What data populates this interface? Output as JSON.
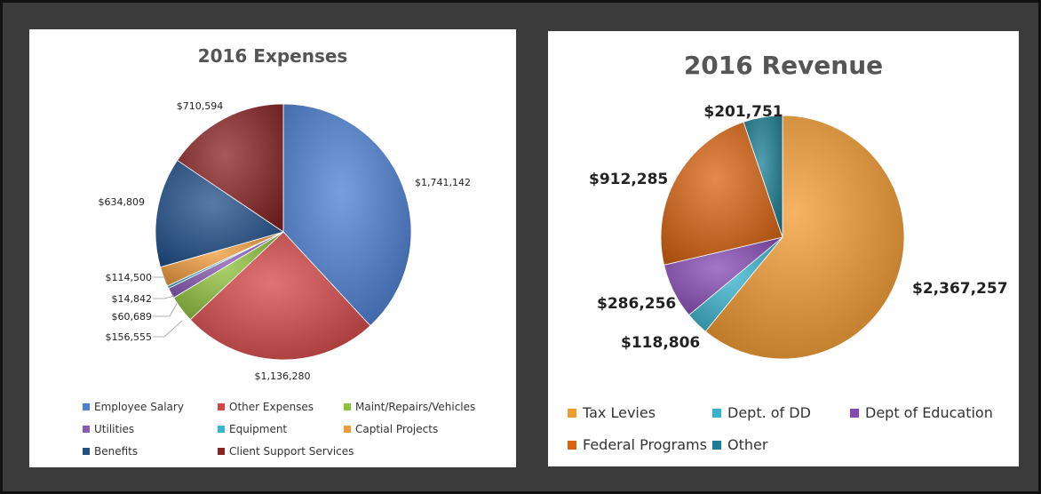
{
  "chart_data": [
    {
      "type": "pie",
      "title": "2016 Expenses",
      "categories": [
        "Employee Salary",
        "Other Expenses",
        "Maint/Repairs/Vehicles",
        "Utilities",
        "Equipment",
        "Captial Projects",
        "Benefits",
        "Client Support Services"
      ],
      "values": [
        1741142,
        1136280,
        156555,
        60689,
        14842,
        114500,
        634809,
        710594
      ],
      "data_labels": [
        "$1,741,142",
        "$1,136,280",
        "$156,555",
        "$60,689",
        "$14,842",
        "$114,500",
        "$634,809",
        "$710,594"
      ],
      "colors": [
        "#4a7fd4",
        "#d64545",
        "#8fc23c",
        "#8a5ab8",
        "#3bb6d0",
        "#f09a3a",
        "#1f4e8a",
        "#8a2222"
      ],
      "legend_placement": "bottom"
    },
    {
      "type": "pie",
      "title": "2016 Revenue",
      "categories": [
        "Tax Levies",
        "Dept. of DD",
        "Dept of Education",
        "Federal Programs",
        "Other"
      ],
      "values": [
        2367257,
        118806,
        286256,
        912285,
        201751
      ],
      "data_labels": [
        "$2,367,257",
        "$118,806",
        "$286,256",
        "$912,285",
        "$201,751"
      ],
      "colors": [
        "#f39a2e",
        "#37b3cf",
        "#8549b5",
        "#d9620f",
        "#1a7f95"
      ],
      "legend_placement": "bottom"
    }
  ]
}
